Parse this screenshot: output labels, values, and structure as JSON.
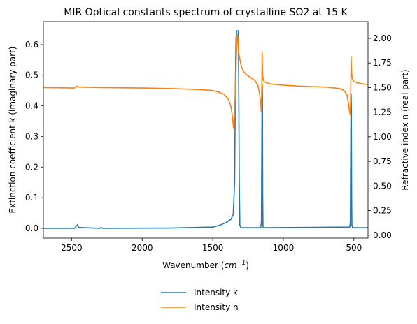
{
  "chart_data": {
    "type": "line",
    "title": "MIR Optical constants spectrum of crystalline SO2 at 15 K",
    "xlabel_main": "Wavenumber (",
    "xlabel_unit_base": "cm",
    "xlabel_unit_exp": "−1",
    "xlabel_close": ")",
    "ylabel_left": "Extinction coefficient k (imaginary part)",
    "ylabel_right": "Refractive index n (real part)",
    "xlim": [
      2700,
      400
    ],
    "ylim_left": [
      -0.032,
      0.675
    ],
    "ylim_right": [
      -0.03,
      2.17
    ],
    "x_ticks": [
      2500,
      2000,
      1500,
      1000,
      500
    ],
    "y_left_ticks": [
      "0.0",
      "0.1",
      "0.2",
      "0.3",
      "0.4",
      "0.5",
      "0.6"
    ],
    "y_right_ticks": [
      "0.00",
      "0.25",
      "0.50",
      "0.75",
      "1.00",
      "1.25",
      "1.50",
      "1.75",
      "2.00"
    ],
    "grid": false,
    "legend_placement": "bottom-center",
    "series": [
      {
        "name": "Intensity k",
        "axis": "left",
        "color": "#1f77b4",
        "x": [
          2700,
          2480,
          2470,
          2460,
          2450,
          2300,
          2290,
          2280,
          1800,
          1500,
          1450,
          1400,
          1370,
          1355,
          1345,
          1340,
          1335,
          1330,
          1325,
          1318,
          1312,
          1308,
          1300,
          1160,
          1155,
          1152,
          1150,
          1148,
          1146,
          1144,
          1140,
          530,
          525,
          522,
          520,
          518,
          516,
          514,
          510,
          400
        ],
        "values": [
          0.0,
          0.0,
          0.005,
          0.011,
          0.003,
          0.0,
          0.003,
          0.0,
          0.001,
          0.004,
          0.01,
          0.02,
          0.03,
          0.045,
          0.15,
          0.45,
          0.62,
          0.645,
          0.645,
          0.645,
          0.15,
          0.01,
          0.002,
          0.002,
          0.02,
          0.3,
          0.47,
          0.43,
          0.1,
          0.005,
          0.002,
          0.004,
          0.02,
          0.3,
          0.44,
          0.39,
          0.1,
          0.01,
          0.002,
          0.002
        ]
      },
      {
        "name": "Intensity n",
        "axis": "right",
        "color": "#ff7f0e",
        "x": [
          2700,
          2480,
          2470,
          2460,
          2450,
          2300,
          2000,
          1800,
          1600,
          1500,
          1450,
          1420,
          1400,
          1385,
          1370,
          1360,
          1352,
          1345,
          1338,
          1332,
          1326,
          1320,
          1315,
          1310,
          1300,
          1290,
          1280,
          1260,
          1230,
          1200,
          1180,
          1170,
          1160,
          1156,
          1152,
          1150,
          1148,
          1146,
          1142,
          1135,
          1120,
          1100,
          1050,
          1000,
          900,
          800,
          700,
          600,
          570,
          550,
          540,
          530,
          525,
          522,
          520,
          518,
          516,
          513,
          508,
          500,
          480,
          450,
          400
        ],
        "values": [
          1.5,
          1.495,
          1.505,
          1.515,
          1.505,
          1.5,
          1.495,
          1.49,
          1.48,
          1.47,
          1.45,
          1.43,
          1.4,
          1.37,
          1.3,
          1.2,
          1.08,
          1.25,
          1.55,
          1.85,
          2.05,
          1.95,
          1.85,
          1.8,
          1.73,
          1.69,
          1.66,
          1.63,
          1.6,
          1.57,
          1.52,
          1.45,
          1.35,
          1.25,
          1.55,
          1.86,
          1.7,
          1.62,
          1.58,
          1.56,
          1.55,
          1.54,
          1.53,
          1.525,
          1.515,
          1.51,
          1.505,
          1.49,
          1.47,
          1.43,
          1.35,
          1.25,
          1.22,
          1.5,
          1.82,
          1.72,
          1.65,
          1.6,
          1.58,
          1.56,
          1.55,
          1.54,
          1.53
        ]
      }
    ]
  }
}
